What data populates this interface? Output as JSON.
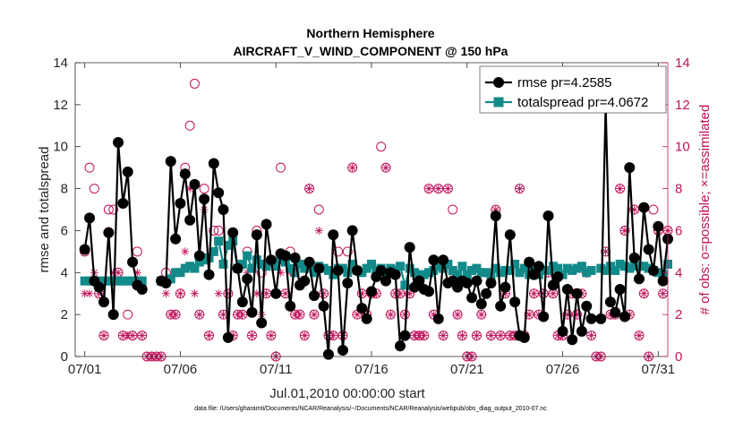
{
  "chart_data": {
    "type": "line",
    "title": "Northern Hemisphere",
    "subtitle": "AIRCRAFT_V_WIND_COMPONENT @ 150 hPa",
    "xlabel": "Jul.01,2010 00:00:00 start",
    "ylabel": "rmse and totalspread",
    "ylabel_right": "# of obs: o=possible; ×=assimilated",
    "footnote": "data file: /Users/gharamti/Documents/NCAR/Reanalysis/~/Documents/NCAR/Reanalysis/webpub/obs_diag_output_2010-07.nc",
    "xlim": [
      0.5,
      31.5
    ],
    "ylim": [
      0,
      14
    ],
    "ylim_right": [
      0,
      14
    ],
    "x_ticks": [
      1,
      6,
      11,
      16,
      21,
      26,
      31
    ],
    "x_tick_labels": [
      "07/01",
      "07/06",
      "07/11",
      "07/16",
      "07/21",
      "07/26",
      "07/31"
    ],
    "y_ticks": [
      0,
      2,
      4,
      6,
      8,
      10,
      12,
      14
    ],
    "y_ticks_right": [
      0,
      2,
      4,
      6,
      8,
      10,
      12,
      14
    ],
    "legend": {
      "placement": "top-right",
      "entries": [
        "rmse pr=4.2585",
        "totalspread pr=4.0672"
      ]
    },
    "colors": {
      "rmse": "#000000",
      "spread": "#138a8a",
      "obs": "#c0125a",
      "axis": "#262626"
    },
    "series": [
      {
        "name": "rmse pr=4.2585",
        "style": "black line with filled circles",
        "x": [
          1.0,
          1.25,
          1.5,
          1.75,
          2.0,
          2.25,
          2.5,
          2.75,
          3.0,
          3.25,
          3.5,
          3.75,
          4.0,
          5.0,
          5.25,
          5.5,
          5.75,
          6.0,
          6.25,
          6.5,
          6.75,
          7.0,
          7.25,
          7.5,
          7.75,
          8.0,
          8.25,
          8.5,
          8.75,
          9.0,
          9.25,
          9.5,
          9.75,
          10.0,
          10.25,
          10.5,
          10.75,
          11.0,
          11.25,
          11.5,
          11.75,
          12.0,
          12.25,
          12.5,
          12.75,
          13.0,
          13.25,
          13.5,
          13.75,
          14.0,
          14.25,
          14.5,
          14.75,
          15.0,
          15.25,
          15.5,
          15.75,
          16.0,
          16.25,
          16.5,
          16.75,
          17.0,
          17.25,
          17.5,
          17.75,
          18.0,
          18.25,
          18.5,
          18.75,
          19.0,
          19.25,
          19.5,
          19.75,
          20.0,
          20.25,
          20.5,
          20.75,
          21.0,
          21.25,
          21.5,
          21.75,
          22.0,
          22.25,
          22.5,
          22.75,
          23.0,
          23.25,
          23.5,
          23.75,
          24.0,
          24.25,
          24.5,
          24.75,
          25.0,
          25.25,
          25.5,
          25.75,
          26.0,
          26.25,
          26.5,
          26.75,
          27.0,
          27.25,
          27.5,
          28.0,
          28.25,
          28.5,
          28.75,
          29.0,
          29.25,
          29.5,
          29.75,
          30.0,
          30.25,
          30.5,
          30.75,
          31.0,
          31.25,
          31.5
        ],
        "values": [
          5.1,
          6.6,
          3.6,
          3.3,
          2.6,
          5.9,
          2.0,
          10.2,
          7.3,
          8.8,
          4.5,
          3.4,
          3.2,
          3.6,
          3.5,
          9.3,
          5.6,
          7.3,
          8.7,
          6.5,
          8.2,
          4.8,
          7.5,
          3.9,
          9.2,
          7.8,
          7.0,
          0.9,
          5.9,
          4.2,
          2.6,
          3.7,
          2.1,
          5.8,
          1.6,
          6.3,
          4.6,
          3.0,
          4.9,
          4.8,
          2.4,
          4.7,
          3.4,
          3.6,
          4.5,
          2.9,
          4.2,
          2.4,
          0.1,
          5.8,
          4.1,
          0.3,
          3.5,
          6.0,
          4.1,
          2.3,
          1.8,
          3.1,
          3.8,
          4.1,
          3.6,
          4.0,
          3.9,
          0.5,
          1.0,
          5.2,
          3.3,
          3.6,
          3.2,
          3.1,
          4.6,
          1.8,
          4.6,
          3.5,
          3.6,
          3.3,
          3.6,
          3.5,
          2.8,
          3.6,
          2.5,
          3.0,
          3.5,
          6.7,
          2.4,
          3.3,
          5.8,
          2.6,
          1.0,
          0.9,
          4.5,
          3.9,
          4.3,
          1.9,
          6.7,
          3.4,
          3.8,
          1.2,
          3.2,
          0.8,
          3.0,
          1.2,
          2.4,
          1.8,
          1.8,
          12.0,
          2.6,
          2.1,
          3.2,
          1.9,
          9.0,
          4.7,
          3.7,
          7.1,
          5.1,
          4.1,
          6.2,
          3.6,
          5.6
        ]
      },
      {
        "name": "totalspread pr=4.0672",
        "style": "teal line with filled squares",
        "x": [
          1.0,
          1.25,
          1.5,
          1.75,
          2.0,
          2.25,
          2.5,
          2.75,
          3.0,
          3.25,
          3.5,
          3.75,
          4.0,
          5.0,
          5.25,
          5.5,
          5.75,
          6.0,
          6.25,
          6.5,
          6.75,
          7.0,
          7.25,
          7.5,
          7.75,
          8.0,
          8.25,
          8.5,
          8.75,
          9.0,
          9.25,
          9.5,
          9.75,
          10.0,
          10.25,
          10.5,
          10.75,
          11.0,
          11.25,
          11.5,
          11.75,
          12.0,
          12.25,
          12.5,
          12.75,
          13.0,
          13.25,
          13.5,
          13.75,
          14.0,
          14.25,
          14.5,
          14.75,
          15.0,
          15.25,
          15.5,
          15.75,
          16.0,
          16.25,
          16.5,
          16.75,
          17.0,
          17.25,
          17.5,
          17.75,
          18.0,
          18.25,
          18.5,
          18.75,
          19.0,
          19.25,
          19.5,
          19.75,
          20.0,
          20.25,
          20.5,
          20.75,
          21.0,
          21.25,
          21.5,
          21.75,
          22.0,
          22.25,
          22.5,
          22.75,
          23.0,
          23.25,
          23.5,
          23.75,
          24.0,
          24.25,
          24.5,
          24.75,
          25.0,
          25.25,
          25.5,
          25.75,
          26.0,
          26.25,
          26.5,
          26.75,
          27.0,
          27.25,
          27.5,
          28.0,
          28.25,
          28.5,
          28.75,
          29.0,
          29.25,
          29.5,
          29.75,
          30.0,
          30.25,
          30.5,
          30.75,
          31.0,
          31.25,
          31.5
        ],
        "values": [
          3.6,
          3.6,
          3.6,
          3.6,
          3.6,
          3.6,
          3.6,
          3.6,
          3.6,
          3.6,
          3.6,
          3.6,
          3.6,
          3.6,
          3.6,
          3.7,
          4.0,
          4.0,
          4.2,
          4.3,
          4.2,
          4.5,
          4.6,
          4.7,
          5.0,
          5.5,
          4.4,
          5.3,
          5.5,
          4.2,
          4.4,
          4.8,
          4.2,
          4.6,
          4.4,
          4.3,
          4.5,
          4.3,
          4.6,
          4.5,
          4.2,
          4.0,
          4.4,
          4.2,
          4.2,
          4.0,
          4.3,
          4.2,
          4.1,
          3.9,
          4.2,
          4.2,
          4.0,
          4.4,
          4.1,
          4.0,
          4.2,
          4.4,
          4.1,
          4.2,
          4.0,
          4.2,
          4.1,
          4.3,
          3.4,
          4.2,
          4.0,
          3.9,
          3.9,
          4.0,
          4.1,
          4.3,
          4.2,
          4.4,
          4.1,
          3.9,
          4.3,
          3.9,
          4.1,
          4.2,
          4.0,
          4.0,
          3.8,
          4.2,
          4.0,
          4.1,
          4.1,
          4.4,
          4.0,
          4.2,
          3.9,
          4.1,
          3.9,
          4.1,
          4.1,
          4.3,
          4.2,
          3.9,
          4.2,
          4.1,
          4.2,
          4.3,
          4.0,
          4.1,
          4.2,
          4.1,
          4.3,
          4.1,
          4.4,
          4.3,
          4.2,
          4.3,
          4.3,
          4.3,
          4.2,
          4.1,
          4.0,
          3.9,
          4.4
        ]
      },
      {
        "name": "# of obs possible",
        "style": "magenta open circles (right axis)",
        "x": [
          1.0,
          1.25,
          1.5,
          1.75,
          2.0,
          2.25,
          2.5,
          2.75,
          3.0,
          3.25,
          3.5,
          3.75,
          4.0,
          4.25,
          4.5,
          4.75,
          5.0,
          5.25,
          5.5,
          5.75,
          6.0,
          6.25,
          6.5,
          6.75,
          7.0,
          7.25,
          7.5,
          7.75,
          8.0,
          8.25,
          8.5,
          8.75,
          9.0,
          9.25,
          9.5,
          9.75,
          10.0,
          10.25,
          10.5,
          10.75,
          11.0,
          11.25,
          11.5,
          11.75,
          12.0,
          12.25,
          12.5,
          12.75,
          13.0,
          13.25,
          13.5,
          13.75,
          14.0,
          14.25,
          14.5,
          14.75,
          15.0,
          15.25,
          15.5,
          15.75,
          16.0,
          16.25,
          16.5,
          16.75,
          17.0,
          17.25,
          17.5,
          17.75,
          18.0,
          18.25,
          18.5,
          18.75,
          19.0,
          19.25,
          19.5,
          19.75,
          20.0,
          20.25,
          20.5,
          20.75,
          21.0,
          21.25,
          21.5,
          21.75,
          22.0,
          22.25,
          22.5,
          22.75,
          23.0,
          23.25,
          23.5,
          23.75,
          24.0,
          24.25,
          24.5,
          24.75,
          25.0,
          25.25,
          25.5,
          25.75,
          26.0,
          26.25,
          26.5,
          26.75,
          27.0,
          27.25,
          27.5,
          27.75,
          28.0,
          28.25,
          28.5,
          28.75,
          29.0,
          29.25,
          29.5,
          29.75,
          30.0,
          30.25,
          30.5,
          30.75,
          31.0,
          31.25,
          31.5
        ],
        "values": [
          5,
          9,
          8,
          3,
          1,
          7,
          7,
          4,
          1,
          2,
          1,
          5,
          1,
          0,
          0,
          0,
          0,
          4,
          2,
          2,
          3,
          9,
          11,
          13,
          2,
          8,
          1,
          6,
          6,
          2,
          3,
          1,
          2,
          2,
          5,
          1,
          6,
          4,
          3,
          1,
          0,
          9,
          3,
          5,
          2,
          2,
          1,
          8,
          2,
          7,
          3,
          1,
          1,
          5,
          1,
          5,
          9,
          2,
          3,
          2,
          3,
          3,
          10,
          9,
          2,
          3,
          3,
          2,
          3,
          1,
          1,
          1,
          8,
          2,
          8,
          1,
          8,
          7,
          2,
          1,
          0,
          0,
          1,
          2,
          3,
          1,
          7,
          1,
          3,
          1,
          1,
          8,
          1,
          2,
          3,
          2,
          3,
          4,
          3,
          1,
          1,
          2,
          3,
          2,
          3,
          4,
          1,
          0,
          0,
          5,
          2,
          2,
          8,
          6,
          2,
          7,
          1,
          3,
          0,
          7,
          6,
          3,
          6
        ]
      },
      {
        "name": "# of obs assimilated",
        "style": "magenta asterisks (right axis)",
        "x": [
          1.0,
          1.25,
          1.5,
          1.75,
          2.0,
          2.25,
          2.5,
          2.75,
          3.0,
          3.25,
          3.5,
          3.75,
          4.0,
          4.25,
          4.5,
          4.75,
          5.0,
          5.25,
          5.5,
          5.75,
          6.0,
          6.25,
          6.5,
          6.75,
          7.0,
          7.25,
          7.5,
          7.75,
          8.0,
          8.25,
          8.5,
          8.75,
          9.0,
          9.25,
          9.5,
          9.75,
          10.0,
          10.25,
          10.5,
          10.75,
          11.0,
          11.25,
          11.5,
          11.75,
          12.0,
          12.25,
          12.5,
          12.75,
          13.0,
          13.25,
          13.5,
          13.75,
          14.0,
          14.25,
          14.5,
          14.75,
          15.0,
          15.25,
          15.5,
          15.75,
          16.0,
          16.25,
          16.5,
          16.75,
          17.0,
          17.25,
          17.5,
          17.75,
          18.0,
          18.25,
          18.5,
          18.75,
          19.0,
          19.25,
          19.5,
          19.75,
          20.0,
          20.25,
          20.5,
          20.75,
          21.0,
          21.25,
          21.5,
          21.75,
          22.0,
          22.25,
          22.5,
          22.75,
          23.0,
          23.25,
          23.5,
          23.75,
          24.0,
          24.25,
          24.5,
          24.75,
          25.0,
          25.25,
          25.5,
          25.75,
          26.0,
          26.25,
          26.5,
          26.75,
          27.0,
          27.25,
          27.5,
          27.75,
          28.0,
          28.25,
          28.5,
          28.75,
          29.0,
          29.25,
          29.5,
          29.75,
          30.0,
          30.25,
          30.5,
          30.75,
          31.0,
          31.25,
          31.5
        ],
        "values": [
          3,
          3,
          4,
          3,
          1,
          6,
          4,
          4,
          1,
          1,
          1,
          4,
          1,
          0,
          0,
          0,
          0,
          3,
          2,
          2,
          3,
          5,
          8,
          3,
          2,
          7,
          1,
          5,
          3,
          2,
          3,
          1,
          2,
          2,
          4,
          1,
          3,
          2,
          3,
          1,
          0,
          4,
          3,
          4,
          2,
          2,
          1,
          8,
          2,
          6,
          3,
          1,
          1,
          4,
          1,
          4,
          9,
          2,
          3,
          2,
          3,
          3,
          4,
          9,
          2,
          3,
          3,
          2,
          3,
          1,
          1,
          1,
          8,
          2,
          8,
          1,
          8,
          4,
          2,
          1,
          0,
          0,
          1,
          2,
          3,
          1,
          7,
          1,
          3,
          1,
          1,
          8,
          1,
          2,
          3,
          2,
          3,
          4,
          3,
          1,
          1,
          2,
          3,
          2,
          3,
          4,
          1,
          0,
          0,
          5,
          2,
          2,
          8,
          6,
          2,
          7,
          1,
          3,
          0,
          4,
          6,
          3,
          6
        ]
      }
    ]
  }
}
